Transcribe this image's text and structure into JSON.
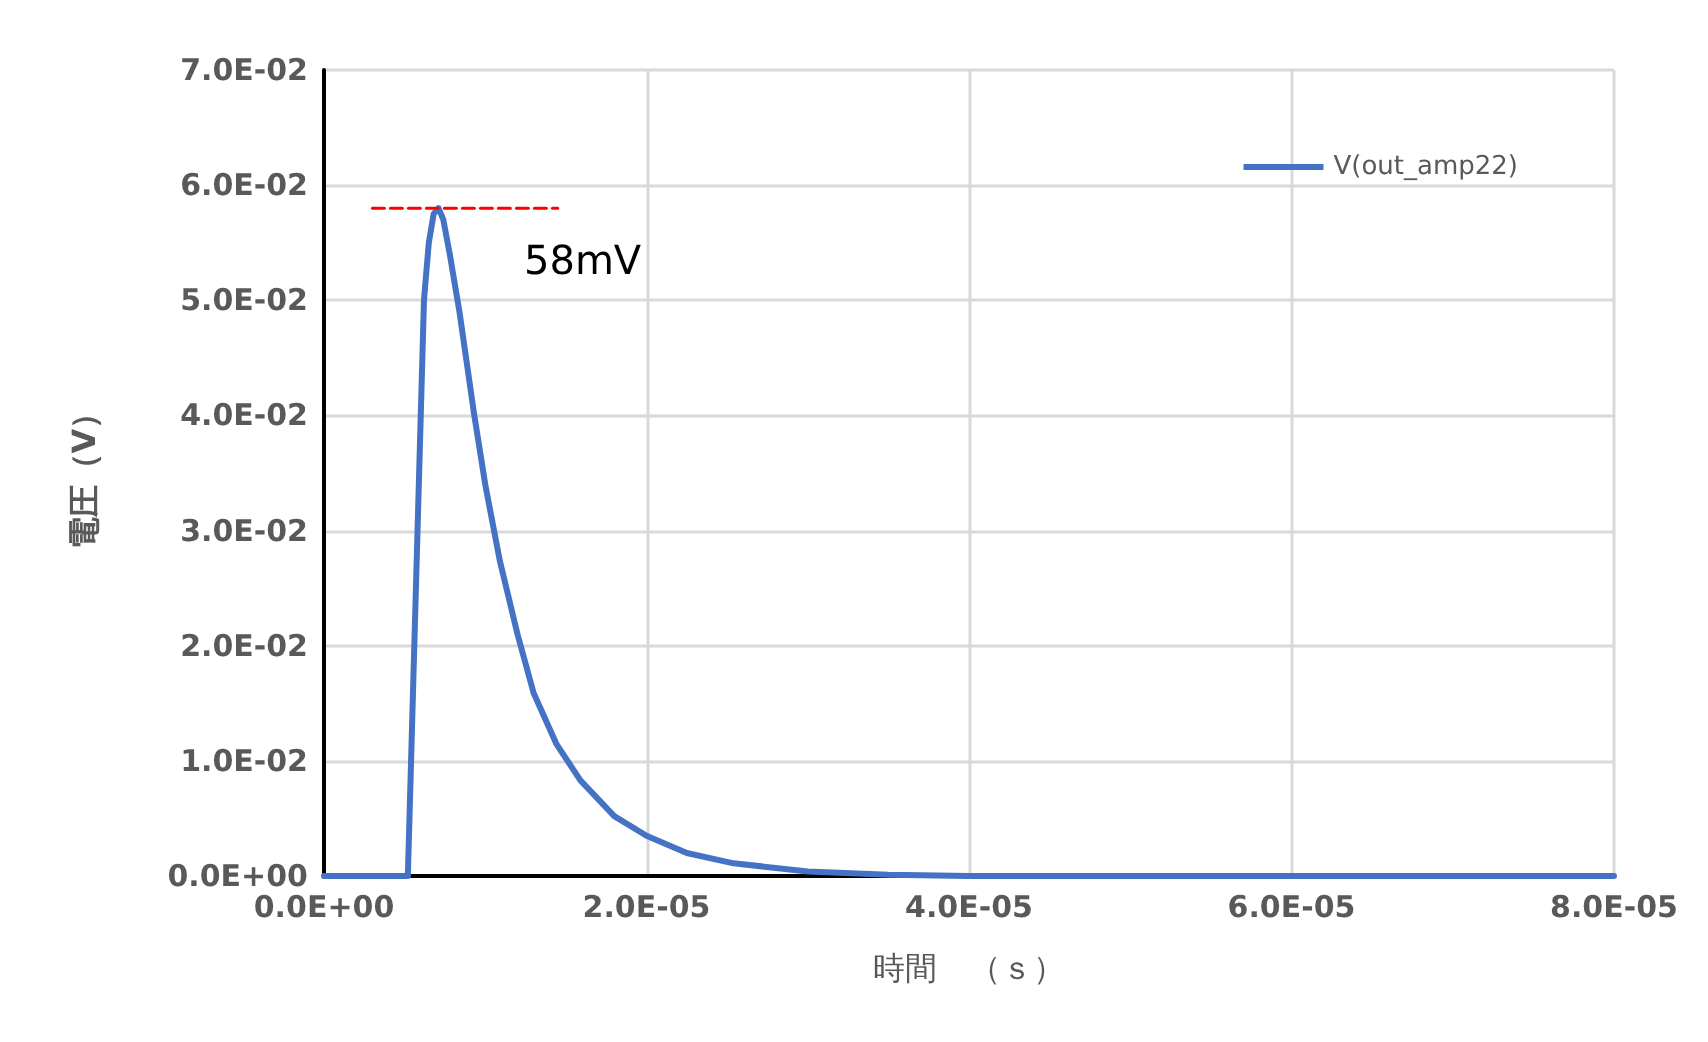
{
  "chart_data": {
    "type": "line",
    "xlabel": "時間　（ｓ）",
    "ylabel": "電圧（V）",
    "xlim": [
      0,
      8e-05
    ],
    "xticks": [
      {
        "value": 0,
        "label": "0.0E+00"
      },
      {
        "value": 2e-05,
        "label": "2.0E-05"
      },
      {
        "value": 4e-05,
        "label": "4.0E-05"
      },
      {
        "value": 6e-05,
        "label": "6.0E-05"
      },
      {
        "value": 8e-05,
        "label": "8.0E-05"
      }
    ],
    "ylim": [
      0,
      0.07
    ],
    "yticks": [
      {
        "value": 0,
        "label": "0.0E+00"
      },
      {
        "value": 0.01,
        "label": "1.0E-02"
      },
      {
        "value": 0.02,
        "label": "2.0E-02"
      },
      {
        "value": 0.03,
        "label": "3.0E-02"
      },
      {
        "value": 0.04,
        "label": "4.0E-02"
      },
      {
        "value": 0.05,
        "label": "5.0E-02"
      },
      {
        "value": 0.06,
        "label": "6.0E-02"
      },
      {
        "value": 0.07,
        "label": "7.0E-02"
      }
    ],
    "series": [
      {
        "name": "V(out_amp22)",
        "color": "#4472c4",
        "x": [
          0,
          5e-06,
          5.2e-06,
          5.8e-06,
          6.2e-06,
          6.5e-06,
          6.8e-06,
          7.1e-06,
          7.4e-06,
          7.8e-06,
          8.4e-06,
          9.3e-06,
          1e-05,
          1.09e-05,
          1.2e-05,
          1.3e-05,
          1.44e-05,
          1.59e-05,
          1.8e-05,
          2e-05,
          2.25e-05,
          2.54e-05,
          3e-05,
          3.5e-05,
          4e-05,
          6e-05,
          8e-05
        ],
        "values": [
          0,
          0,
          0,
          0.03,
          0.05,
          0.055,
          0.0575,
          0.058,
          0.057,
          0.054,
          0.049,
          0.0402,
          0.034,
          0.0274,
          0.021,
          0.0159,
          0.0115,
          0.0083,
          0.0052,
          0.0035,
          0.002,
          0.0011,
          0.0004,
          0.0001,
          0,
          0,
          0
        ]
      },
      {
        "type": "line",
        "color": "#ff0000",
        "line_style": "dashed",
        "x": [
          3e-06,
          1.45e-05
        ],
        "values": [
          0.058,
          0.058
        ]
      }
    ],
    "annotations": [
      "58mV"
    ],
    "grid": true,
    "legend": "top right",
    "marker": "none"
  }
}
